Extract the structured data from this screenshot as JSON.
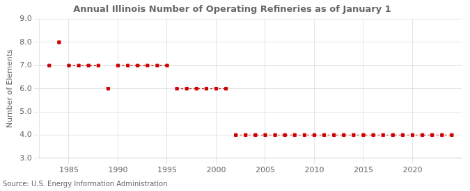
{
  "chart_data": {
    "type": "line",
    "title": "Annual Illinois Number of Operating Refineries as of January 1",
    "ylabel": "Number of Elements",
    "source": "Source: U.S. Energy Information Administration",
    "x": [
      1983,
      1984,
      1985,
      1986,
      1987,
      1988,
      1989,
      1990,
      1991,
      1992,
      1993,
      1994,
      1995,
      1996,
      1997,
      1998,
      1999,
      2000,
      2001,
      2002,
      2003,
      2004,
      2005,
      2006,
      2007,
      2008,
      2009,
      2010,
      2011,
      2012,
      2013,
      2014,
      2015,
      2016,
      2017,
      2018,
      2019,
      2020,
      2021,
      2022,
      2023,
      2024
    ],
    "values": [
      7,
      8,
      7,
      7,
      7,
      7,
      6,
      7,
      7,
      7,
      7,
      7,
      7,
      6,
      6,
      6,
      6,
      6,
      6,
      4,
      4,
      4,
      4,
      4,
      4,
      4,
      4,
      4,
      4,
      4,
      4,
      4,
      4,
      4,
      4,
      4,
      4,
      4,
      4,
      4,
      4,
      4
    ],
    "color": "#cc0000",
    "marker": "square",
    "line_style": "dashed",
    "xlim": [
      1982,
      2025
    ],
    "xticks": [
      1985,
      1990,
      1995,
      2000,
      2005,
      2010,
      2015,
      2020
    ],
    "ylim": [
      3.0,
      9.0
    ],
    "yticks": [
      {
        "value": 3.0,
        "label": "3.0"
      },
      {
        "value": 4.0,
        "label": "4.0"
      },
      {
        "value": 5.0,
        "label": "5.0"
      },
      {
        "value": 6.0,
        "label": "6.0"
      },
      {
        "value": 7.0,
        "label": "7.0"
      },
      {
        "value": 8.0,
        "label": "8.0"
      },
      {
        "value": 9.0,
        "label": "9.0"
      }
    ],
    "grid": true
  }
}
